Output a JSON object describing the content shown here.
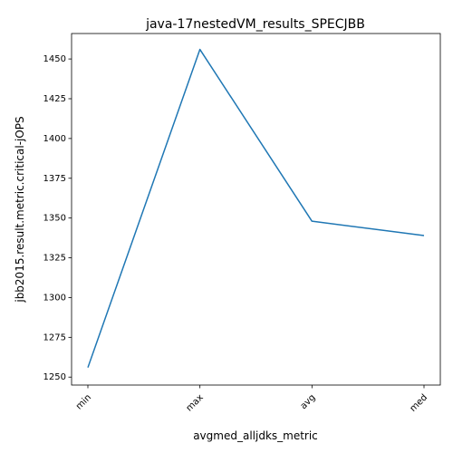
{
  "chart_data": {
    "type": "line",
    "title": "java-17nestedVM_results_SPECJBB",
    "xlabel": "avgmed_alljdks_metric",
    "ylabel": "jbb2015.result.metric.critical-jOPS",
    "categories": [
      "min",
      "max",
      "avg",
      "med"
    ],
    "series": [
      {
        "values": [
          1256,
          1456,
          1348,
          1339
        ]
      }
    ],
    "ylim": [
      1245,
      1466
    ],
    "yticks": [
      1250,
      1275,
      1300,
      1325,
      1350,
      1375,
      1400,
      1425,
      1450
    ],
    "grid": false,
    "line_color": "#1f77b4"
  }
}
